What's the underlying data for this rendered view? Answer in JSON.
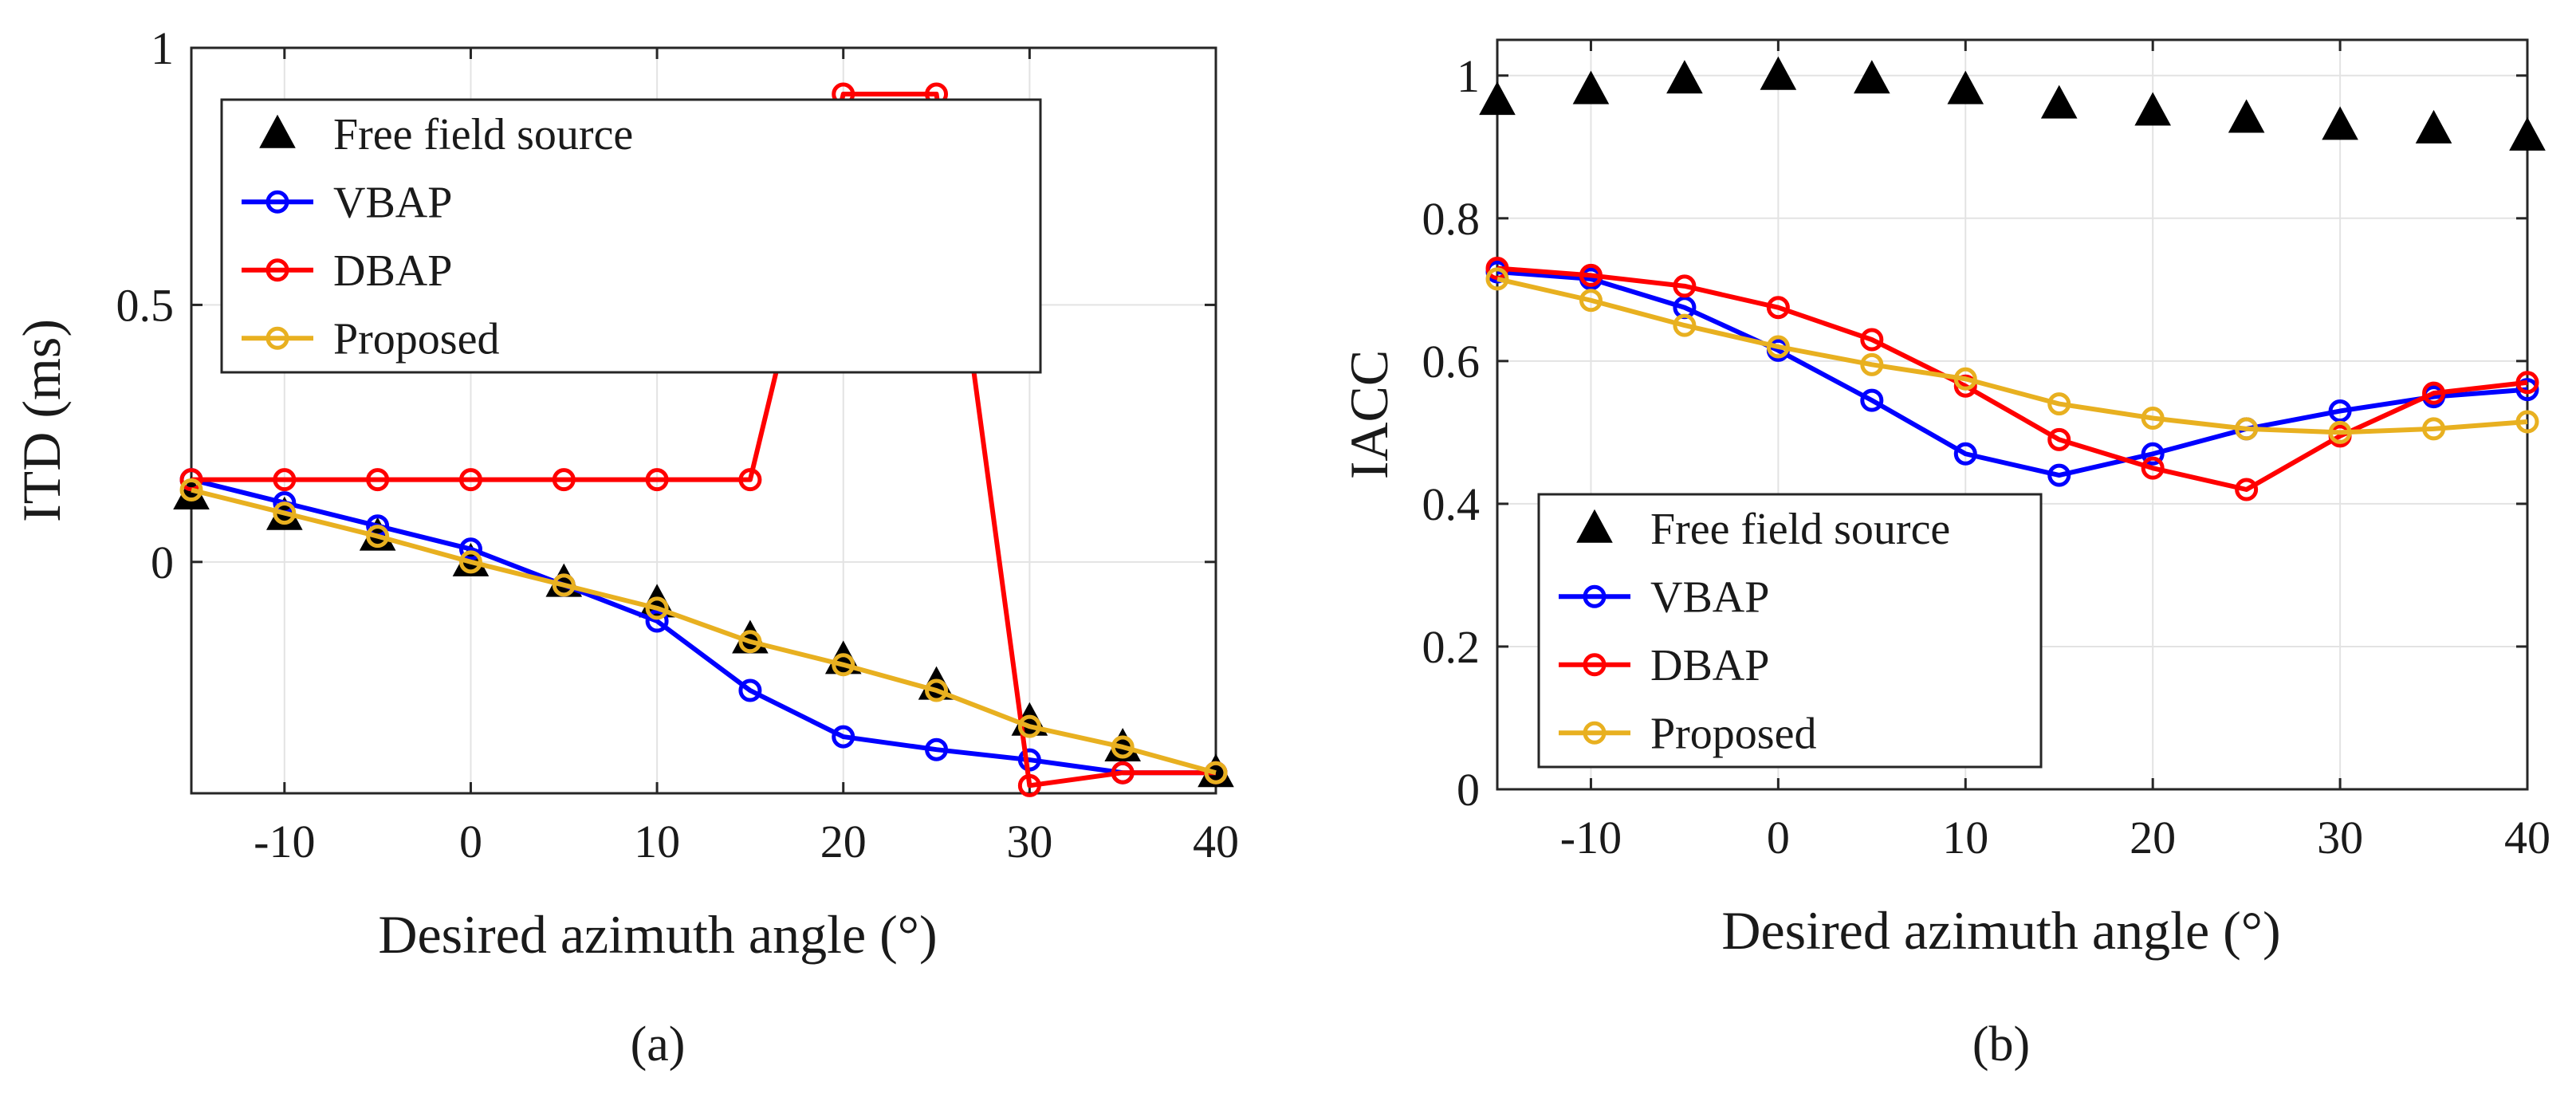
{
  "chart_data": [
    {
      "type": "line",
      "panel": "(a)",
      "xlabel": "Desired azimuth angle (°)",
      "ylabel": "ITD (ms)",
      "xlim": [
        -15,
        40
      ],
      "ylim": [
        -0.45,
        1.0
      ],
      "xticks": [
        -10,
        0,
        10,
        20,
        30,
        40
      ],
      "xtick_labels": [
        "-10",
        "0",
        "10",
        "20",
        "30",
        "40"
      ],
      "yticks": [
        0,
        0.5,
        1
      ],
      "ytick_labels": [
        "0",
        "0.5",
        "1"
      ],
      "grid": true,
      "legend_position": "top-left",
      "x": [
        -15,
        -10,
        -5,
        0,
        5,
        10,
        15,
        20,
        25,
        30,
        35,
        40
      ],
      "series": [
        {
          "name": "Free field source",
          "marker": "triangle",
          "color": "#000000",
          "line": false,
          "values": [
            0.13,
            0.09,
            0.05,
            0.0,
            -0.04,
            -0.08,
            -0.15,
            -0.19,
            -0.24,
            -0.31,
            -0.36,
            -0.41
          ]
        },
        {
          "name": "VBAP",
          "marker": "circle",
          "color": "#0000ff",
          "line": true,
          "values": [
            0.16,
            0.115,
            0.07,
            0.025,
            -0.045,
            -0.115,
            -0.25,
            -0.34,
            -0.365,
            -0.385,
            -0.41,
            -0.41
          ]
        },
        {
          "name": "DBAP",
          "marker": "circle",
          "color": "#ff0000",
          "line": true,
          "values": [
            0.16,
            0.16,
            0.16,
            0.16,
            0.16,
            0.16,
            0.16,
            0.91,
            0.91,
            -0.435,
            -0.41,
            -0.41
          ]
        },
        {
          "name": "Proposed",
          "marker": "circle",
          "color": "#e8b020",
          "line": true,
          "values": [
            0.14,
            0.095,
            0.05,
            0.0,
            -0.045,
            -0.09,
            -0.155,
            -0.2,
            -0.25,
            -0.32,
            -0.36,
            -0.41
          ]
        }
      ]
    },
    {
      "type": "line",
      "panel": "(b)",
      "xlabel": "Desired azimuth angle (°)",
      "ylabel": "IACC",
      "xlim": [
        -15,
        40
      ],
      "ylim": [
        0,
        1.05
      ],
      "xticks": [
        -10,
        0,
        10,
        20,
        30,
        40
      ],
      "xtick_labels": [
        "-10",
        "0",
        "10",
        "20",
        "30",
        "40"
      ],
      "yticks": [
        0,
        0.2,
        0.4,
        0.6,
        0.8,
        1
      ],
      "ytick_labels": [
        "0",
        "0.2",
        "0.4",
        "0.6",
        "0.8",
        "1"
      ],
      "grid": true,
      "legend_position": "bottom-left",
      "x": [
        -15,
        -10,
        -5,
        0,
        5,
        10,
        15,
        20,
        25,
        30,
        35,
        40
      ],
      "series": [
        {
          "name": "Free field source",
          "marker": "triangle",
          "color": "#000000",
          "line": false,
          "values": [
            0.965,
            0.98,
            0.995,
            1.0,
            0.995,
            0.98,
            0.96,
            0.95,
            0.94,
            0.93,
            0.925,
            0.915
          ]
        },
        {
          "name": "VBAP",
          "marker": "circle",
          "color": "#0000ff",
          "line": true,
          "values": [
            0.725,
            0.715,
            0.675,
            0.615,
            0.545,
            0.47,
            0.44,
            0.47,
            0.505,
            0.53,
            0.55,
            0.56
          ]
        },
        {
          "name": "DBAP",
          "marker": "circle",
          "color": "#ff0000",
          "line": true,
          "values": [
            0.73,
            0.72,
            0.705,
            0.675,
            0.63,
            0.565,
            0.49,
            0.45,
            0.42,
            0.495,
            0.555,
            0.57
          ]
        },
        {
          "name": "Proposed",
          "marker": "circle",
          "color": "#e8b020",
          "line": true,
          "values": [
            0.715,
            0.685,
            0.65,
            0.62,
            0.595,
            0.575,
            0.54,
            0.52,
            0.505,
            0.5,
            0.505,
            0.515
          ]
        }
      ]
    }
  ]
}
